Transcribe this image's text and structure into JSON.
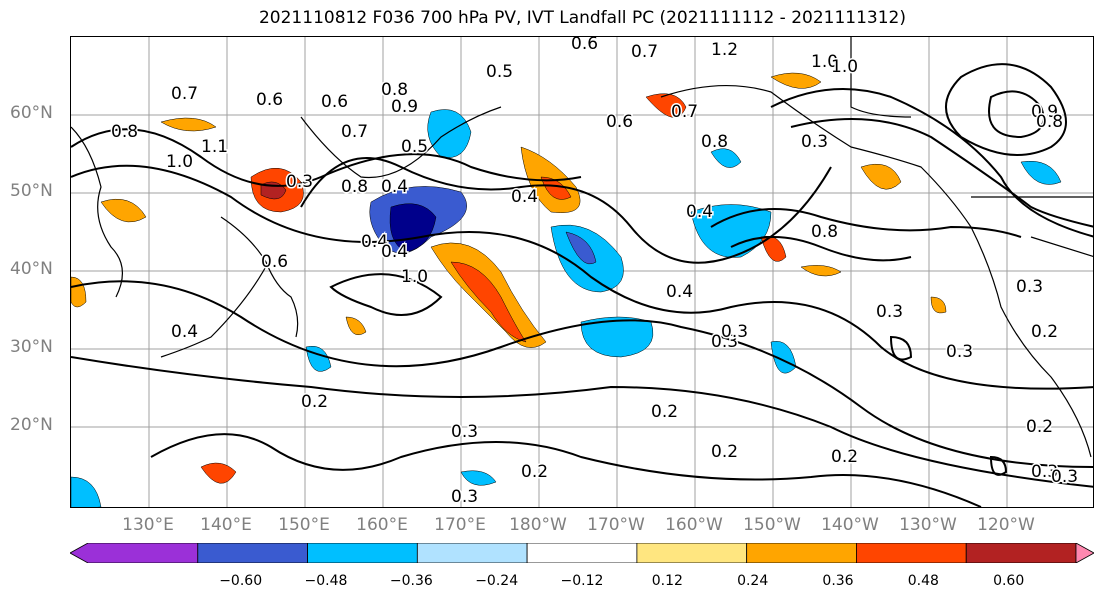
{
  "title": "2021110812 F036 700 hPa PV, IVT Landfall PC (2021111112 - 2021111312)",
  "lat_labels": [
    "60°N",
    "50°N",
    "40°N",
    "30°N",
    "20°N"
  ],
  "lon_labels": [
    "130°E",
    "140°E",
    "150°E",
    "160°E",
    "170°E",
    "180°W",
    "170°W",
    "160°W",
    "150°W",
    "140°W",
    "130°W",
    "120°W"
  ],
  "colorbar": {
    "ticks": [
      "−0.60",
      "−0.48",
      "−0.36",
      "−0.24",
      "−0.12",
      "0.12",
      "0.24",
      "0.36",
      "0.48",
      "0.60"
    ],
    "colors": [
      "#9b30d8",
      "#00008b",
      "#3a5bd0",
      "#00bfff",
      "#b0e2ff",
      "#ffffff",
      "#ffe680",
      "#ffa500",
      "#ff4500",
      "#b22222",
      "#ff88b0"
    ]
  },
  "contour_labels": [
    "0.6",
    "0.5",
    "0.7",
    "0.6",
    "0.8",
    "1.2",
    "1.0",
    "0.7",
    "0.6",
    "0.8",
    "0.7",
    "0.6",
    "0.8",
    "0.9",
    "1.0",
    "1.1",
    "0.7",
    "0.4",
    "0.3",
    "0.8",
    "0.4",
    "0.5",
    "0.6",
    "0.4",
    "1.0",
    "0.3",
    "0.2",
    "0.3",
    "0.4",
    "0.4",
    "0.4",
    "0.8",
    "0.4",
    "0.3",
    "0.3",
    "0.3",
    "0.3",
    "0.3",
    "0.2",
    "0.2",
    "0.2",
    "0.3",
    "0.2",
    "0.2",
    "0.2",
    "0.3",
    "0.3",
    "1.0",
    "0.9",
    "0.8"
  ]
}
